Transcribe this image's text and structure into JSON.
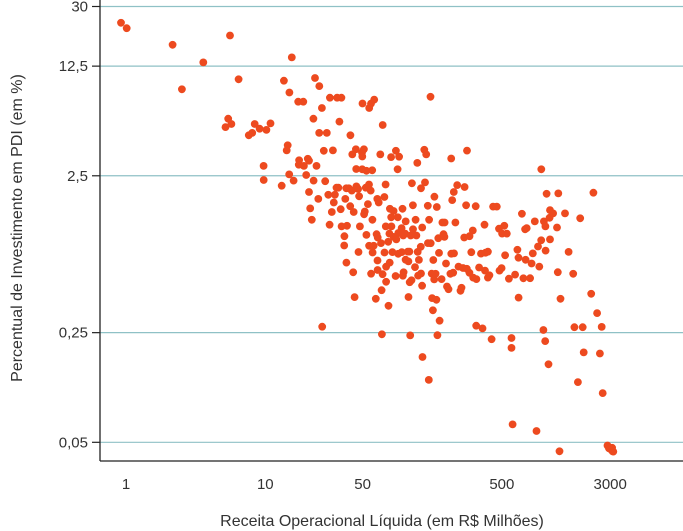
{
  "colors": {
    "point": "#ed4a1f",
    "grid": "#8fc1c6",
    "axis": "#222222",
    "text": "#333333"
  },
  "chart_data": {
    "type": "scatter",
    "xlabel": "Receita Operacional Líquida (em R$ Milhões)",
    "ylabel": "Percentual de Investimento em PDI (em %)",
    "x_scale": "log",
    "y_scale": "log",
    "xlim": [
      0.65,
      10000
    ],
    "ylim": [
      0.038,
      33
    ],
    "x_ticks": [
      1,
      10,
      50,
      500,
      3000
    ],
    "x_tick_labels": [
      "1",
      "10",
      "50",
      "500",
      "3000"
    ],
    "y_ticks": [
      30,
      12.5,
      2.5,
      0.25,
      0.05
    ],
    "y_tick_labels": [
      "30",
      "12,5",
      "2,5",
      "0,25",
      "0,05"
    ],
    "grid": "horizontal",
    "legend": "none",
    "points": [
      [
        0.92,
        23.6
      ],
      [
        1.01,
        21.8
      ],
      [
        2.16,
        17.1
      ],
      [
        2.52,
        8.9
      ],
      [
        3.59,
        13.2
      ],
      [
        5.18,
        5.11
      ],
      [
        5.42,
        5.78
      ],
      [
        5.71,
        5.35
      ],
      [
        5.58,
        19.6
      ],
      [
        6.43,
        10.3
      ],
      [
        7.61,
        4.53
      ],
      [
        8.06,
        4.69
      ],
      [
        8.39,
        5.35
      ],
      [
        9.1,
        4.99
      ],
      [
        9.73,
        2.89
      ],
      [
        9.74,
        2.35
      ],
      [
        10.18,
        4.9
      ],
      [
        10.9,
        5.39
      ],
      [
        13.12,
        2.16
      ],
      [
        13.6,
        10.1
      ],
      [
        14.49,
        3.91
      ],
      [
        14.89,
        8.49
      ],
      [
        14.25,
        3.63
      ],
      [
        14.84,
        2.55
      ],
      [
        15.5,
        14.2
      ],
      [
        15.96,
        2.33
      ],
      [
        17.4,
        2.94
      ],
      [
        17.49,
        3.14
      ],
      [
        17.24,
        7.42
      ],
      [
        18.74,
        7.42
      ],
      [
        18.94,
        2.89
      ],
      [
        19.68,
        2.53
      ],
      [
        20.19,
        3.21
      ],
      [
        20.59,
        1.97
      ],
      [
        21.0,
        1.55
      ],
      [
        20.6,
        3.12
      ],
      [
        22.25,
        2.33
      ],
      [
        21.59,
        1.31
      ],
      [
        22.16,
        5.78
      ],
      [
        22.74,
        10.5
      ],
      [
        23.33,
        2.89
      ],
      [
        24.02,
        1.78
      ],
      [
        24.39,
        4.69
      ],
      [
        24.44,
        9.33
      ],
      [
        25.64,
        0.273
      ],
      [
        25.5,
        6.76
      ],
      [
        26.3,
        3.61
      ],
      [
        27.67,
        4.69
      ],
      [
        26.95,
        2.31
      ],
      [
        28.34,
        1.89
      ],
      [
        29.1,
        7.86
      ],
      [
        28.98,
        1.22
      ],
      [
        30.06,
        1.47
      ],
      [
        30.6,
        3.63
      ],
      [
        31.64,
        1.89
      ],
      [
        31.05,
        1.69
      ],
      [
        32.47,
        2.1
      ],
      [
        32.8,
        7.86
      ],
      [
        33.49,
        2.1
      ],
      [
        34.04,
        5.54
      ],
      [
        34.79,
        1.53
      ],
      [
        35.31,
        1.19
      ],
      [
        35.23,
        7.86
      ],
      [
        37.0,
        1.03
      ],
      [
        36.85,
        0.899
      ],
      [
        37.54,
        1.78
      ],
      [
        38.2,
        2.08
      ],
      [
        38.22,
        0.699
      ],
      [
        38.65,
        1.2
      ],
      [
        40.7,
        1.6
      ],
      [
        39.81,
        2.08
      ],
      [
        40.84,
        4.53
      ],
      [
        42.14,
        3.42
      ],
      [
        42.79,
        0.606
      ],
      [
        41.8,
        2.01
      ],
      [
        43.18,
        1.47
      ],
      [
        44.73,
        3.69
      ],
      [
        43.82,
        0.421
      ],
      [
        45.0,
        2.76
      ],
      [
        45.09,
        2.14
      ],
      [
        46.41,
        2.06
      ],
      [
        46.72,
        0.817
      ],
      [
        47.78,
        1.19
      ],
      [
        47.18,
        1.85
      ],
      [
        49.51,
        3.51
      ],
      [
        49.64,
        2.75
      ],
      [
        49.9,
        7.22
      ],
      [
        51.1,
        3.69
      ],
      [
        49.75,
        3.32
      ],
      [
        51.28,
        1.42
      ],
      [
        51.86,
        1.48
      ],
      [
        52.74,
        2.1
      ],
      [
        53.21,
        1.05
      ],
      [
        53.2,
        2.69
      ],
      [
        55.72,
        6.76
      ],
      [
        54.53,
        1.65
      ],
      [
        55.59,
        2.2
      ],
      [
        55.64,
        0.895
      ],
      [
        57.48,
        7.21
      ],
      [
        57.18,
        2.01
      ],
      [
        57.52,
        0.594
      ],
      [
        58.79,
        1.31
      ],
      [
        58.61,
        2.71
      ],
      [
        60.56,
        7.65
      ],
      [
        58.94,
        0.811
      ],
      [
        60.06,
        0.895
      ],
      [
        62.17,
        0.411
      ],
      [
        63.77,
        1.78
      ],
      [
        62.99,
        1.06
      ],
      [
        64.09,
        0.627
      ],
      [
        64.15,
        1.01
      ],
      [
        65.27,
        1.69
      ],
      [
        63.98,
        0.721
      ],
      [
        67.03,
        3.42
      ],
      [
        67.76,
        0.931
      ],
      [
        68.41,
        0.466
      ],
      [
        69.67,
        5.27
      ],
      [
        68.75,
        0.244
      ],
      [
        71.75,
        1.83
      ],
      [
        69.64,
        0.59
      ],
      [
        71.81,
        0.811
      ],
      [
        73.78,
        0.527
      ],
      [
        73.14,
        2.2
      ],
      [
        73.35,
        1.19
      ],
      [
        73.76,
        0.658
      ],
      [
        76.71,
        0.371
      ],
      [
        76.28,
        0.949
      ],
      [
        77.91,
        1.07
      ],
      [
        78.53,
        1.54
      ],
      [
        80.03,
        3.29
      ],
      [
        78.21,
        0.699
      ],
      [
        80.53,
        1.19
      ],
      [
        80.21,
        1.36
      ],
      [
        83.5,
        1.49
      ],
      [
        81.82,
        0.815
      ],
      [
        83.59,
        1.02
      ],
      [
        87.24,
        0.982
      ],
      [
        86.32,
        0.574
      ],
      [
        86.77,
        3.61
      ],
      [
        89.18,
        2.75
      ],
      [
        90.06,
        0.796
      ],
      [
        89.43,
        1.36
      ],
      [
        90.19,
        1.08
      ],
      [
        91.45,
        3.31
      ],
      [
        95.32,
        1.16
      ],
      [
        97.42,
        0.577
      ],
      [
        95.53,
        0.815
      ],
      [
        96.63,
        1.54
      ],
      [
        98.44,
        0.606
      ],
      [
        97.78,
        1.04
      ],
      [
        101.12,
        1.07
      ],
      [
        101.75,
        0.73
      ],
      [
        102.01,
        1.28
      ],
      [
        105.55,
        0.821
      ],
      [
        106.75,
        0.422
      ],
      [
        106.64,
        0.711
      ],
      [
        108.35,
        0.821
      ],
      [
        109.0,
        0.524
      ],
      [
        109.87,
        0.24
      ],
      [
        110.84,
        1.04
      ],
      [
        112.3,
        0.539
      ],
      [
        112.95,
        2.24
      ],
      [
        115.05,
        1.14
      ],
      [
        114.91,
        1.62
      ],
      [
        120.08,
        1.31
      ],
      [
        118.83,
        0.654
      ],
      [
        121.68,
        1.04
      ],
      [
        123.52,
        3.02
      ],
      [
        124.26,
        0.818
      ],
      [
        126.84,
        0.727
      ],
      [
        125.24,
        0.578
      ],
      [
        131.26,
        0.596
      ],
      [
        131.25,
        2.08
      ],
      [
        130.98,
        0.881
      ],
      [
        134.62,
        0.175
      ],
      [
        133.99,
        1.17
      ],
      [
        133.74,
        0.498
      ],
      [
        138.78,
        3.66
      ],
      [
        143.04,
        3.42
      ],
      [
        140.39,
        2.27
      ],
      [
        147.3,
        0.931
      ],
      [
        147.04,
        1.61
      ],
      [
        149.51,
        0.125
      ],
      [
        150.13,
        1.31
      ],
      [
        156.73,
        0.595
      ],
      [
        153.77,
        7.97
      ],
      [
        154.27,
        0.93
      ],
      [
        159.81,
        0.347
      ],
      [
        157.75,
        0.415
      ],
      [
        163.99,
        1.84
      ],
      [
        160.81,
        0.726
      ],
      [
        163.39,
        0.546
      ],
      [
        169.48,
        0.405
      ],
      [
        172.31,
        0.241
      ],
      [
        170.64,
        1.58
      ],
      [
        167.17,
        0.593
      ],
      [
        178.47,
        0.298
      ],
      [
        176.91,
        0.806
      ],
      [
        174.88,
        1.0
      ],
      [
        184.72,
        0.549
      ],
      [
        187.16,
        1.26
      ],
      [
        190.57,
        1.06
      ],
      [
        193.41,
        1.02
      ],
      [
        193.85,
        1.26
      ],
      [
        198.59,
        0.69
      ],
      [
        201.76,
        0.492
      ],
      [
        206.97,
        0.473
      ],
      [
        213.53,
        0.593
      ],
      [
        216.34,
        3.22
      ],
      [
        216.7,
        0.797
      ],
      [
        220.14,
        1.75
      ],
      [
        223.53,
        0.603
      ],
      [
        226.53,
        0.8
      ],
      [
        225.81,
        1.97
      ],
      [
        231.96,
        1.26
      ],
      [
        238.95,
        2.18
      ],
      [
        244.06,
        0.659
      ],
      [
        252.49,
        0.462
      ],
      [
        256.75,
        0.483
      ],
      [
        262.86,
        0.646
      ],
      [
        269.93,
        2.12
      ],
      [
        268.42,
        1.01
      ],
      [
        276.8,
        1.62
      ],
      [
        280.09,
        0.638
      ],
      [
        280.86,
        3.62
      ],
      [
        292.26,
        0.602
      ],
      [
        292.66,
        1.03
      ],
      [
        301.55,
        0.814
      ],
      [
        311.15,
        0.561
      ],
      [
        309.3,
        1.12
      ],
      [
        324.67,
        1.6
      ],
      [
        328.49,
        0.549
      ],
      [
        326.91,
        0.277
      ],
      [
        343.37,
        0.651
      ],
      [
        354.18,
        0.798
      ],
      [
        363.36,
        0.266
      ],
      [
        378.32,
        0.622
      ],
      [
        375.19,
        1.22
      ],
      [
        381.37,
        0.808
      ],
      [
        397.06,
        0.561
      ],
      [
        396.71,
        0.82
      ],
      [
        407.27,
        0.58
      ],
      [
        422.24,
        0.227
      ],
      [
        432.43,
        1.59
      ],
      [
        459.69,
        1.59
      ],
      [
        477.03,
        1.15
      ],
      [
        481.3,
        0.622
      ],
      [
        498.31,
        0.645
      ],
      [
        501.69,
        1.07
      ],
      [
        520.99,
        1.2
      ],
      [
        527.92,
        0.778
      ],
      [
        542.52,
        1.07
      ],
      [
        562.27,
        0.552
      ],
      [
        586.48,
        0.2
      ],
      [
        586.36,
        0.231
      ],
      [
        597.04,
        0.065
      ],
      [
        622.66,
        0.586
      ],
      [
        646.77,
        0.844
      ],
      [
        658.44,
        0.751
      ],
      [
        660.11,
        0.418
      ],
      [
        697.01,
        1.43
      ],
      [
        714.05,
        0.555
      ],
      [
        734.89,
        1.14
      ],
      [
        740.46,
        0.728
      ],
      [
        753.97,
        1.16
      ],
      [
        797.18,
        0.556
      ],
      [
        818.01,
        0.69
      ],
      [
        834.22,
        0.8
      ],
      [
        862.0,
        1.28
      ],
      [
        886.54,
        0.059
      ],
      [
        909.23,
        0.885
      ],
      [
        929.59,
        0.659
      ],
      [
        959.16,
        0.97
      ],
      [
        960.35,
        2.75
      ],
      [
        993.63,
        0.26
      ],
      [
        1030.34,
        0.834
      ],
      [
        1003.07,
        1.28
      ],
      [
        1024.85,
        0.221
      ],
      [
        1027.28,
        1.19
      ],
      [
        1048.5,
        1.92
      ],
      [
        1080.81,
        0.157
      ],
      [
        1100.89,
        1.35
      ],
      [
        1107.87,
        1.51
      ],
      [
        1107.75,
        0.983
      ],
      [
        1166.65,
        1.44
      ],
      [
        1243.93,
        1.17
      ],
      [
        1271.7,
        1.93
      ],
      [
        1262.16,
        0.607
      ],
      [
        1298.17,
        0.0438
      ],
      [
        1319.14,
        0.411
      ],
      [
        1421.37,
        1.44
      ],
      [
        1507.81,
        0.818
      ],
      [
        1627.79,
        0.593
      ],
      [
        1658.69,
        0.271
      ],
      [
        1758.39,
        0.121
      ],
      [
        1827.8,
        1.34
      ],
      [
        1902.7,
        0.271
      ],
      [
        1937.21,
        0.187
      ],
      [
        2191.86,
        0.442
      ],
      [
        2274.29,
        1.95
      ],
      [
        2417.58,
        0.333
      ],
      [
        2529.72,
        0.184
      ],
      [
        2605.08,
        0.272
      ],
      [
        2649.58,
        0.103
      ],
      [
        2868.97,
        0.0477
      ],
      [
        2934.48,
        0.0458
      ],
      [
        3002.96,
        0.0453
      ],
      [
        3097.96,
        0.0461
      ],
      [
        3114.37,
        0.0439
      ],
      [
        3157.69,
        0.0436
      ]
    ]
  }
}
